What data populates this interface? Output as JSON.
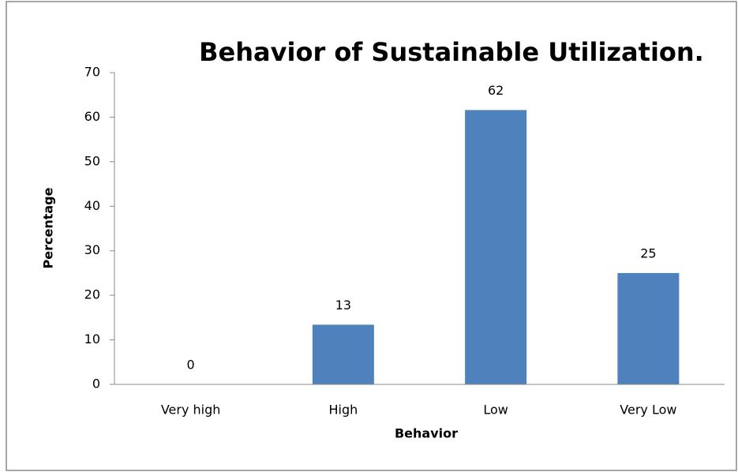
{
  "chart_data": {
    "type": "bar",
    "title": "Behavior of Sustainable Utilization.",
    "xlabel": "Behavior",
    "ylabel": "Percentage",
    "categories": [
      "Very high",
      "High",
      "Low",
      "Very Low"
    ],
    "values": [
      0,
      13.4,
      61.6,
      25
    ],
    "value_labels": [
      "0",
      "13",
      "62",
      "25"
    ],
    "color": "#4f81bd",
    "ylim": [
      0,
      70
    ],
    "yticks": [
      0,
      10,
      20,
      30,
      40,
      50,
      60,
      70
    ],
    "grid": false
  }
}
